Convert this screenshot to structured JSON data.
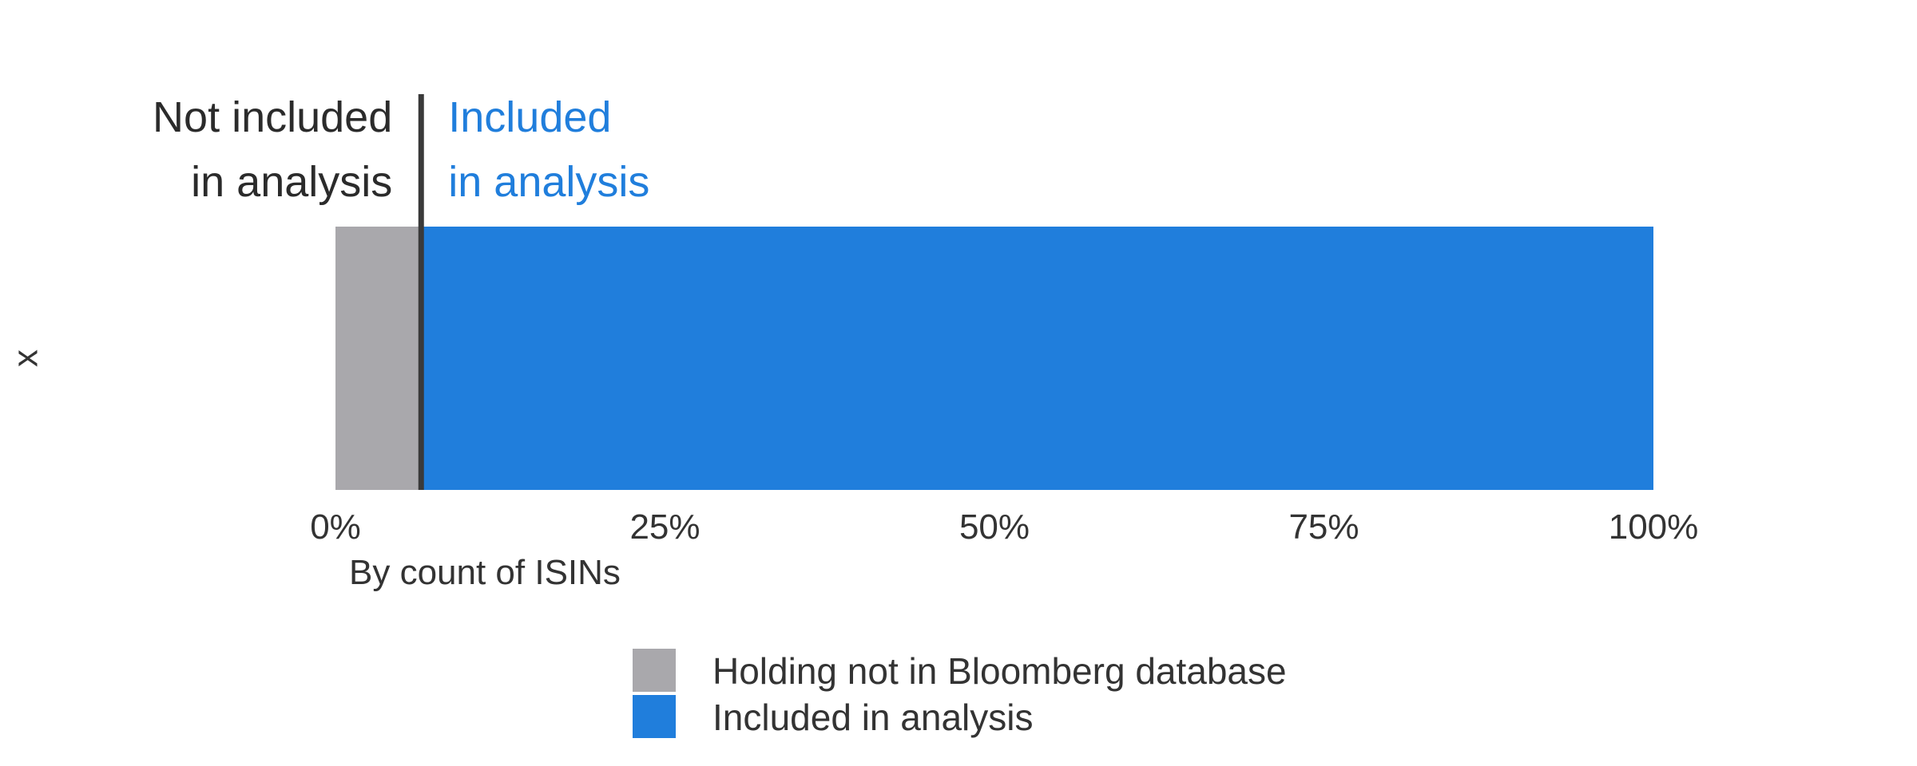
{
  "chart_data": {
    "type": "bar",
    "orientation": "horizontal",
    "stacked": true,
    "categories": [
      "x"
    ],
    "series": [
      {
        "name": "Holding not in Bloomberg database",
        "values": [
          6.5
        ],
        "color": "#a9a8ac"
      },
      {
        "name": "Included in analysis",
        "values": [
          93.5
        ],
        "color": "#207edc"
      }
    ],
    "xlabel": "By count of ISINs",
    "ylabel": "",
    "xlim": [
      0,
      100
    ],
    "x_ticks": [
      0,
      25,
      50,
      75,
      100
    ],
    "x_tick_labels": [
      "0%",
      "25%",
      "50%",
      "75%",
      "100%"
    ],
    "divider_at": 6.5,
    "annotations": {
      "left": [
        "Not included",
        "in analysis"
      ],
      "right": [
        "Included",
        "in analysis"
      ],
      "left_color": "#2b2b2b",
      "right_color": "#207edc"
    },
    "legend": {
      "placement": "bottom"
    },
    "grid": false
  }
}
